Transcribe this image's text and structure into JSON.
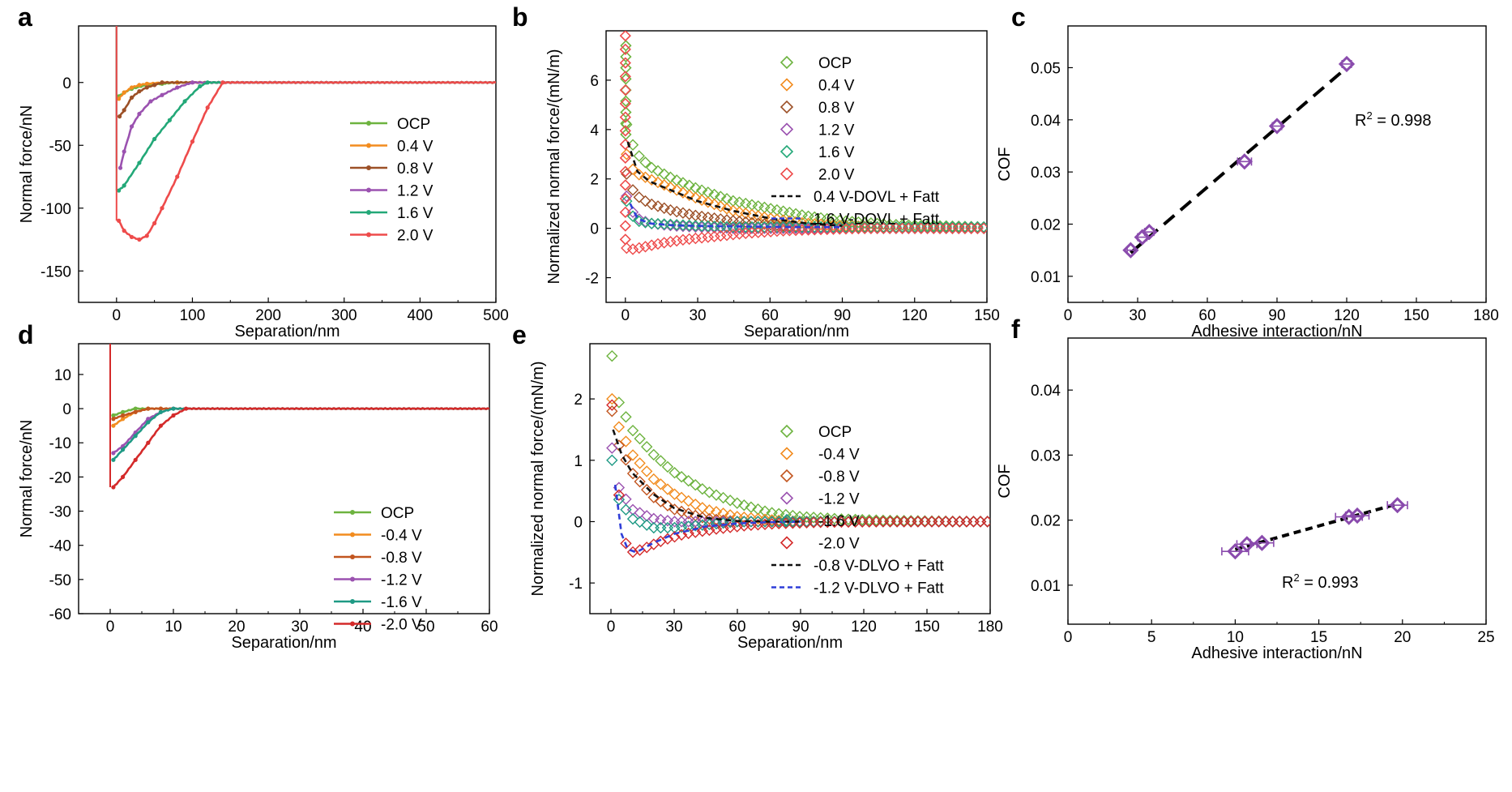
{
  "colors": {
    "OCP": "#6db33f",
    "0.4 V": "#f28c1f",
    "0.8 V": "#9c5027",
    "1.2 V": "#9b52b0",
    "1.6 V": "#23a878",
    "2.0 V": "#ee4b4b",
    "-0.4 V": "#f28c1f",
    "-0.8 V": "#c2551f",
    "-1.2 V": "#9b52b0",
    "-1.6 V": "#1f9a85",
    "-2.0 V": "#d42a2a",
    "fit_black": "#111111",
    "fit_blue": "#2f3ed8",
    "purple": "#8a4bad"
  },
  "chart_data": [
    {
      "panel": "a",
      "type": "line",
      "xlabel": "Separation/nm",
      "ylabel": "Normal force/nN",
      "xlim": [
        -50,
        500
      ],
      "ylim": [
        -175,
        45
      ],
      "xticks": [
        0,
        100,
        200,
        300,
        400,
        500
      ],
      "yticks": [
        0,
        -50,
        -100,
        -150
      ],
      "legend": [
        "OCP",
        "0.4 V",
        "0.8 V",
        "1.2 V",
        "1.6 V",
        "2.0 V"
      ],
      "series": [
        {
          "name": "OCP",
          "x": [
            0,
            3,
            10,
            20,
            40,
            60,
            80,
            500
          ],
          "y": [
            0,
            -11,
            -8,
            -5,
            -2,
            -1,
            0,
            0
          ]
        },
        {
          "name": "0.4 V",
          "x": [
            0,
            3,
            10,
            20,
            30,
            40,
            60,
            80,
            500
          ],
          "y": [
            0,
            -13,
            -8,
            -4,
            -2,
            -1,
            0,
            0,
            0
          ]
        },
        {
          "name": "0.8 V",
          "x": [
            0,
            4,
            10,
            20,
            30,
            40,
            50,
            60,
            500
          ],
          "y": [
            0,
            -27,
            -22,
            -12,
            -7,
            -4,
            -2,
            0,
            0
          ]
        },
        {
          "name": "1.2 V",
          "x": [
            0,
            5,
            10,
            20,
            30,
            45,
            60,
            80,
            100,
            500
          ],
          "y": [
            0,
            -68,
            -55,
            -35,
            -25,
            -15,
            -10,
            -4,
            0,
            0
          ]
        },
        {
          "name": "1.6 V",
          "x": [
            0,
            3,
            10,
            30,
            50,
            70,
            90,
            110,
            120,
            500
          ],
          "y": [
            0,
            -86,
            -82,
            -64,
            -45,
            -30,
            -15,
            -3,
            0,
            0
          ]
        },
        {
          "name": "2.0 V",
          "x": [
            0,
            3,
            10,
            20,
            30,
            40,
            50,
            60,
            80,
            100,
            120,
            140,
            500
          ],
          "y": [
            0,
            -110,
            -118,
            -123,
            -125,
            -122,
            -112,
            -100,
            -75,
            -47,
            -20,
            0,
            0
          ]
        }
      ]
    },
    {
      "panel": "b",
      "type": "scatter",
      "xlabel": "Separation/nm",
      "ylabel": "Normalized normal force/(mN/m)",
      "xlim": [
        -8,
        150
      ],
      "ylim": [
        -3,
        8
      ],
      "xticks": [
        0,
        30,
        60,
        90,
        120,
        150
      ],
      "yticks": [
        -2,
        0,
        2,
        4,
        6
      ],
      "legend": [
        "OCP",
        "0.4 V",
        "0.8 V",
        "1.2 V",
        "1.6 V",
        "2.0 V",
        "0.4 V-DOVL + Fatt",
        "1.6 V-DOVL + Fatt"
      ],
      "series": [
        {
          "name": "OCP",
          "x": [
            0.5,
            2,
            5,
            10,
            20,
            30,
            45,
            60,
            75,
            90,
            110,
            130,
            150
          ],
          "y": [
            4.2,
            3.6,
            3.0,
            2.5,
            2.0,
            1.6,
            1.1,
            0.8,
            0.5,
            0.3,
            0.15,
            0.1,
            0.05
          ]
        },
        {
          "name": "0.4 V",
          "x": [
            0.5,
            2,
            5,
            10,
            20,
            30,
            45,
            60,
            75,
            90,
            110,
            130,
            150
          ],
          "y": [
            3.0,
            2.5,
            2.2,
            2.0,
            1.6,
            1.2,
            0.7,
            0.4,
            0.2,
            0.1,
            0.05,
            0,
            0
          ]
        },
        {
          "name": "0.8 V",
          "x": [
            0.5,
            2,
            5,
            10,
            20,
            30,
            45,
            60,
            75,
            90,
            110,
            130,
            150
          ],
          "y": [
            2.2,
            1.7,
            1.3,
            1.0,
            0.7,
            0.5,
            0.3,
            0.15,
            0.05,
            0,
            0,
            0,
            0
          ]
        },
        {
          "name": "1.2 V",
          "x": [
            0.5,
            2,
            5,
            10,
            20,
            30,
            45,
            60,
            75,
            90,
            110,
            130,
            150
          ],
          "y": [
            1.3,
            0.8,
            0.4,
            0.2,
            0.1,
            0.05,
            0,
            0,
            0,
            0,
            0,
            0,
            0
          ]
        },
        {
          "name": "1.6 V",
          "x": [
            0.5,
            2,
            5,
            10,
            20,
            30,
            45,
            60,
            75,
            90,
            110,
            130,
            150
          ],
          "y": [
            1.1,
            0.6,
            0.3,
            0.2,
            0.15,
            0.1,
            0.05,
            0.05,
            0.05,
            0.05,
            0.05,
            0.05,
            0.05
          ]
        },
        {
          "name": "2.0 V",
          "x": [
            0.5,
            3,
            8,
            15,
            25,
            35,
            50,
            65,
            80,
            100,
            120,
            140,
            150
          ],
          "y": [
            -0.8,
            -0.85,
            -0.75,
            -0.6,
            -0.45,
            -0.35,
            -0.2,
            -0.1,
            -0.05,
            0,
            0,
            0,
            0
          ]
        },
        {
          "name": "0.4 V-DOVL + Fatt",
          "x": [
            1,
            5,
            10,
            20,
            30,
            45,
            60,
            75,
            90
          ],
          "y": [
            3.5,
            2.3,
            1.9,
            1.5,
            1.1,
            0.7,
            0.4,
            0.2,
            0.1
          ]
        },
        {
          "name": "1.6 V-DOVL + Fatt",
          "x": [
            2,
            5,
            10,
            20,
            30,
            45,
            60,
            75,
            90
          ],
          "y": [
            1.0,
            0.4,
            0.2,
            0.12,
            0.1,
            0.08,
            0.06,
            0.05,
            0.05
          ]
        }
      ]
    },
    {
      "panel": "c",
      "type": "scatter",
      "xlabel": "Adhesive interaction/nN",
      "ylabel": "COF",
      "xlim": [
        0,
        180
      ],
      "ylim": [
        0.005,
        0.058
      ],
      "xticks": [
        0,
        30,
        60,
        90,
        120,
        150,
        180
      ],
      "yticks": [
        0.01,
        0.02,
        0.03,
        0.04,
        0.05
      ],
      "annotation": {
        "text": "R",
        "sup": "2",
        "rest": " = 0.998"
      },
      "points": {
        "x": [
          27,
          32,
          35,
          76,
          90,
          120
        ],
        "y": [
          0.015,
          0.0175,
          0.0185,
          0.032,
          0.0388,
          0.0507
        ],
        "xerr": [
          1.5,
          2,
          2,
          3,
          2,
          2
        ]
      },
      "fit": {
        "x": [
          27,
          120
        ],
        "y": [
          0.0145,
          0.05
        ]
      }
    },
    {
      "panel": "d",
      "type": "line",
      "xlabel": "Separation/nm",
      "ylabel": "Normal force/nN",
      "xlim": [
        -5,
        60
      ],
      "ylim": [
        -60,
        19
      ],
      "xticks": [
        0,
        10,
        20,
        30,
        40,
        50,
        60
      ],
      "yticks": [
        10,
        0,
        -10,
        -20,
        -30,
        -40,
        -50,
        -60
      ],
      "legend": [
        "OCP",
        "-0.4 V",
        "-0.8 V",
        "-1.2 V",
        "-1.6 V",
        "-2.0 V"
      ],
      "series": [
        {
          "name": "OCP",
          "x": [
            0,
            0.5,
            2,
            4,
            6,
            60
          ],
          "y": [
            0,
            -2,
            -1,
            0,
            0,
            0
          ]
        },
        {
          "name": "-0.4 V",
          "x": [
            0,
            0.5,
            2,
            4,
            6,
            8,
            60
          ],
          "y": [
            0,
            -5,
            -3,
            -1,
            0,
            0,
            0
          ]
        },
        {
          "name": "-0.8 V",
          "x": [
            0,
            0.5,
            2,
            4,
            6,
            8,
            60
          ],
          "y": [
            0,
            -3,
            -2,
            -1,
            0,
            0,
            0
          ]
        },
        {
          "name": "-1.2 V",
          "x": [
            0,
            0.5,
            2,
            4,
            6,
            8,
            10,
            60
          ],
          "y": [
            0,
            -13,
            -11,
            -7,
            -3,
            -1,
            0,
            0
          ]
        },
        {
          "name": "-1.6 V",
          "x": [
            0,
            0.5,
            2,
            4,
            6,
            8,
            10,
            60
          ],
          "y": [
            0,
            -15,
            -12,
            -8,
            -4,
            -1,
            0,
            0
          ]
        },
        {
          "name": "-2.0 V",
          "x": [
            0,
            0.5,
            2,
            4,
            6,
            8,
            10,
            12,
            60
          ],
          "y": [
            0,
            -23,
            -20,
            -15,
            -10,
            -5,
            -2,
            0,
            0
          ]
        }
      ]
    },
    {
      "panel": "e",
      "type": "scatter",
      "xlabel": "Separation/nm",
      "ylabel": "Normalized normal force/(mN/m)",
      "xlim": [
        -10,
        180
      ],
      "ylim": [
        -1.5,
        2.9
      ],
      "xticks": [
        0,
        30,
        60,
        90,
        120,
        150,
        180
      ],
      "yticks": [
        -1,
        0,
        1,
        2
      ],
      "legend": [
        "OCP",
        "-0.4 V",
        "-0.8 V",
        "-1.2 V",
        "-1.6 V",
        "-2.0 V",
        "-0.8 V-DLVO + Fatt",
        "-1.2 V-DLVO + Fatt"
      ],
      "series": [
        {
          "name": "OCP",
          "x": [
            0.5,
            3,
            10,
            20,
            30,
            45,
            60,
            75,
            90,
            110,
            130,
            150,
            180
          ],
          "y": [
            2.7,
            2.0,
            1.5,
            1.1,
            0.8,
            0.5,
            0.3,
            0.15,
            0.08,
            0.04,
            0.02,
            0.01,
            0
          ]
        },
        {
          "name": "-0.4 V",
          "x": [
            0.5,
            3,
            10,
            20,
            30,
            45,
            60,
            75,
            90,
            110,
            130,
            150,
            180
          ],
          "y": [
            2.0,
            1.6,
            1.1,
            0.7,
            0.45,
            0.2,
            0.08,
            0.03,
            0,
            0,
            0,
            0,
            0
          ]
        },
        {
          "name": "-0.8 V",
          "x": [
            0.5,
            3,
            10,
            20,
            30,
            45,
            60,
            75,
            90,
            110,
            130,
            150,
            180
          ],
          "y": [
            1.8,
            1.3,
            0.8,
            0.4,
            0.2,
            0.05,
            0,
            0,
            0,
            0,
            0,
            0,
            0
          ]
        },
        {
          "name": "-1.2 V",
          "x": [
            0.5,
            3,
            10,
            20,
            30,
            45,
            60,
            75,
            90,
            110,
            130,
            150,
            180
          ],
          "y": [
            1.2,
            0.6,
            0.2,
            0.05,
            0,
            0,
            0,
            0,
            0,
            0,
            0,
            0,
            0
          ]
        },
        {
          "name": "-1.6 V",
          "x": [
            0.5,
            3,
            10,
            20,
            30,
            45,
            60,
            75,
            90,
            110,
            130,
            150,
            180
          ],
          "y": [
            1.0,
            0.4,
            0.05,
            -0.1,
            -0.1,
            -0.05,
            0,
            0,
            0,
            0,
            0,
            0,
            0
          ]
        },
        {
          "name": "-2.0 V",
          "x": [
            0.5,
            3,
            6,
            10,
            15,
            25,
            35,
            50,
            65,
            80,
            100,
            130,
            180
          ],
          "y": [
            1.9,
            0.7,
            -0.3,
            -0.5,
            -0.45,
            -0.3,
            -0.2,
            -0.12,
            -0.06,
            -0.03,
            -0.01,
            0,
            0
          ]
        },
        {
          "name": "-0.8 V-DLVO + Fatt",
          "x": [
            1,
            5,
            10,
            20,
            30,
            45,
            60,
            75,
            90
          ],
          "y": [
            1.5,
            1.1,
            0.8,
            0.45,
            0.22,
            0.06,
            0.01,
            0,
            0
          ]
        },
        {
          "name": "-1.2 V-DLVO + Fatt",
          "x": [
            2,
            5,
            8,
            12,
            20,
            30,
            45,
            60,
            75,
            90
          ],
          "y": [
            0.6,
            -0.2,
            -0.45,
            -0.5,
            -0.35,
            -0.2,
            -0.08,
            -0.03,
            -0.01,
            0
          ]
        }
      ]
    },
    {
      "panel": "f",
      "type": "scatter",
      "xlabel": "Adhesive interaction/nN",
      "ylabel": "COF",
      "xlim": [
        0,
        25
      ],
      "ylim": [
        0.004,
        0.048
      ],
      "xticks": [
        0,
        5,
        10,
        15,
        20,
        25
      ],
      "yticks": [
        0.01,
        0.02,
        0.03,
        0.04
      ],
      "annotation": {
        "text": "R",
        "sup": "2",
        "rest": " = 0.993"
      },
      "points": {
        "x": [
          10,
          10.7,
          11.6,
          16.8,
          17.3,
          19.7
        ],
        "y": [
          0.0152,
          0.0163,
          0.0165,
          0.0205,
          0.0207,
          0.0223
        ],
        "xerr": [
          0.8,
          0.6,
          0.7,
          0.8,
          0.7,
          0.6
        ]
      },
      "fit": {
        "x": [
          10,
          19.7
        ],
        "y": [
          0.0155,
          0.0225
        ]
      }
    }
  ]
}
